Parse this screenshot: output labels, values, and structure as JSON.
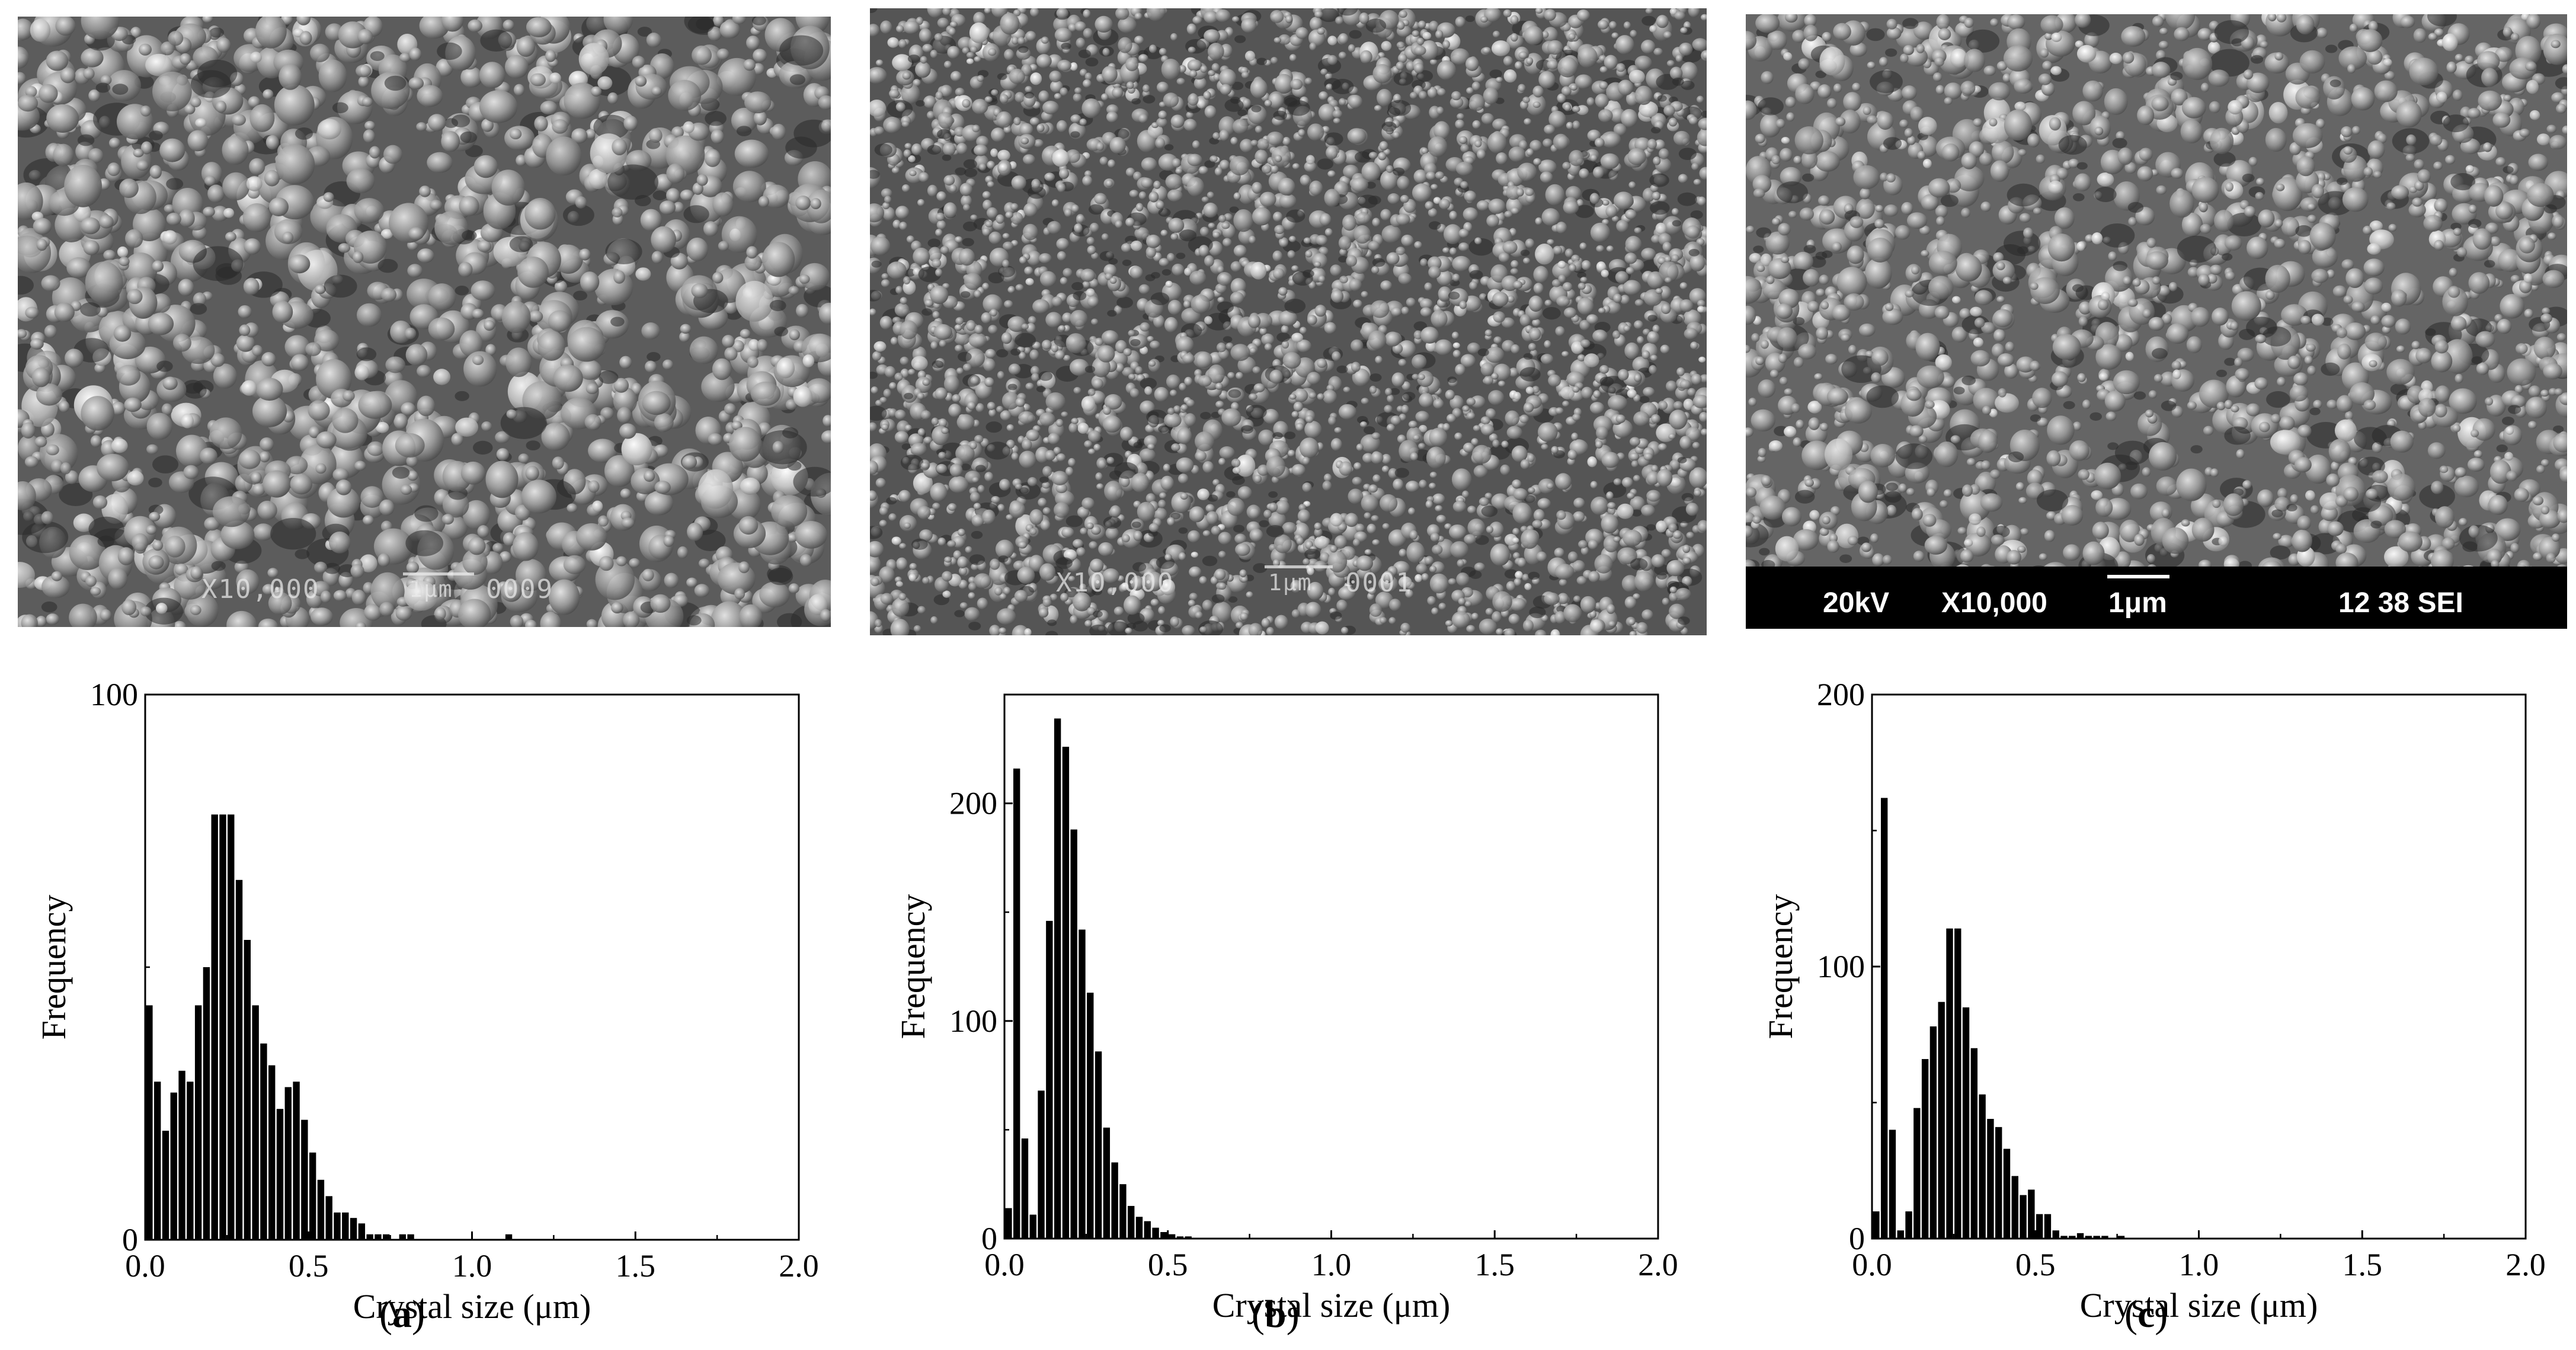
{
  "figure": {
    "panels": [
      {
        "label_open": "(",
        "label_letter": "a",
        "label_close": ")"
      },
      {
        "label_open": "(",
        "label_letter": "b",
        "label_close": ")"
      },
      {
        "label_open": "(",
        "label_letter": "c",
        "label_close": ")"
      }
    ]
  },
  "sem_images": [
    {
      "magnification": "X10,000",
      "scale": "1μm",
      "code": "0009",
      "style": "overlay"
    },
    {
      "magnification": "X10,000",
      "scale": "1μm",
      "code": "0001",
      "style": "overlay"
    },
    {
      "voltage": "20kV",
      "magnification": "X10,000",
      "scale": "1μm",
      "code": "12 38 SEI",
      "style": "databar"
    }
  ],
  "chart_data": [
    {
      "type": "bar",
      "xlabel": "Crystal size (μm)",
      "ylabel": "Frequency",
      "xlim": [
        0,
        2.0
      ],
      "ylim": [
        0,
        100
      ],
      "xticks": [
        "0.0",
        "0.5",
        "1.0",
        "1.5",
        "2.0"
      ],
      "yticks": [
        "0",
        "100"
      ],
      "bin_width": 0.025,
      "values": [
        43,
        29,
        20,
        27,
        31,
        29,
        43,
        50,
        78,
        78,
        78,
        66,
        55,
        43,
        36,
        32,
        24,
        28,
        29,
        22,
        16,
        11,
        8,
        5,
        5,
        4,
        3,
        1,
        1,
        1,
        0,
        1,
        1,
        0,
        0,
        0,
        0,
        0,
        0,
        0,
        0,
        0,
        0,
        0,
        1,
        0,
        0,
        0,
        0,
        0,
        0,
        0,
        0,
        0,
        0,
        0,
        0,
        0,
        0,
        0,
        0,
        0,
        0,
        0,
        0,
        0,
        0,
        0,
        0,
        0,
        0,
        0,
        0,
        0,
        0,
        0,
        0,
        0,
        0,
        0
      ],
      "grid": false
    },
    {
      "type": "bar",
      "xlabel": "Crystal size (μm)",
      "ylabel": "Frequency",
      "xlim": [
        0,
        2.0
      ],
      "ylim": [
        0,
        250
      ],
      "xticks": [
        "0.0",
        "0.5",
        "1.0",
        "1.5",
        "2.0"
      ],
      "yticks": [
        "0",
        "100",
        "200"
      ],
      "bin_width": 0.025,
      "values": [
        14,
        216,
        46,
        11,
        68,
        146,
        239,
        226,
        188,
        142,
        113,
        86,
        51,
        35,
        25,
        15,
        10,
        8,
        5,
        3,
        2,
        1,
        1,
        0,
        0,
        0,
        0,
        0,
        0,
        0,
        0,
        0,
        0,
        0,
        0,
        0,
        0,
        0,
        0,
        0,
        0,
        0,
        0,
        0,
        0,
        0,
        0,
        0,
        0,
        0,
        0,
        0,
        0,
        0,
        0,
        0,
        0,
        0,
        0,
        0,
        0,
        0,
        0,
        0,
        0,
        0,
        0,
        0,
        0,
        0,
        0,
        0,
        0,
        0,
        0,
        0,
        0,
        0,
        0,
        0
      ],
      "grid": false
    },
    {
      "type": "bar",
      "xlabel": "Crystal size (μm)",
      "ylabel": "Frequency",
      "xlim": [
        0,
        2.0
      ],
      "ylim": [
        0,
        200
      ],
      "xticks": [
        "0.0",
        "0.5",
        "1.0",
        "1.5",
        "2.0"
      ],
      "yticks": [
        "0",
        "100",
        "200"
      ],
      "bin_width": 0.025,
      "values": [
        10,
        162,
        40,
        3,
        10,
        48,
        66,
        78,
        87,
        114,
        114,
        85,
        70,
        53,
        44,
        41,
        33,
        23,
        16,
        18,
        9,
        9,
        3,
        1,
        1,
        2,
        1,
        1,
        1,
        0,
        1,
        0,
        0,
        0,
        0,
        0,
        0,
        0,
        0,
        0,
        0,
        0,
        0,
        0,
        0,
        0,
        0,
        0,
        0,
        0,
        0,
        0,
        0,
        0,
        0,
        0,
        0,
        0,
        0,
        0,
        0,
        0,
        0,
        0,
        0,
        0,
        0,
        0,
        0,
        0,
        0,
        0,
        0,
        0,
        0,
        0,
        0,
        0,
        0,
        0
      ],
      "grid": false
    }
  ]
}
